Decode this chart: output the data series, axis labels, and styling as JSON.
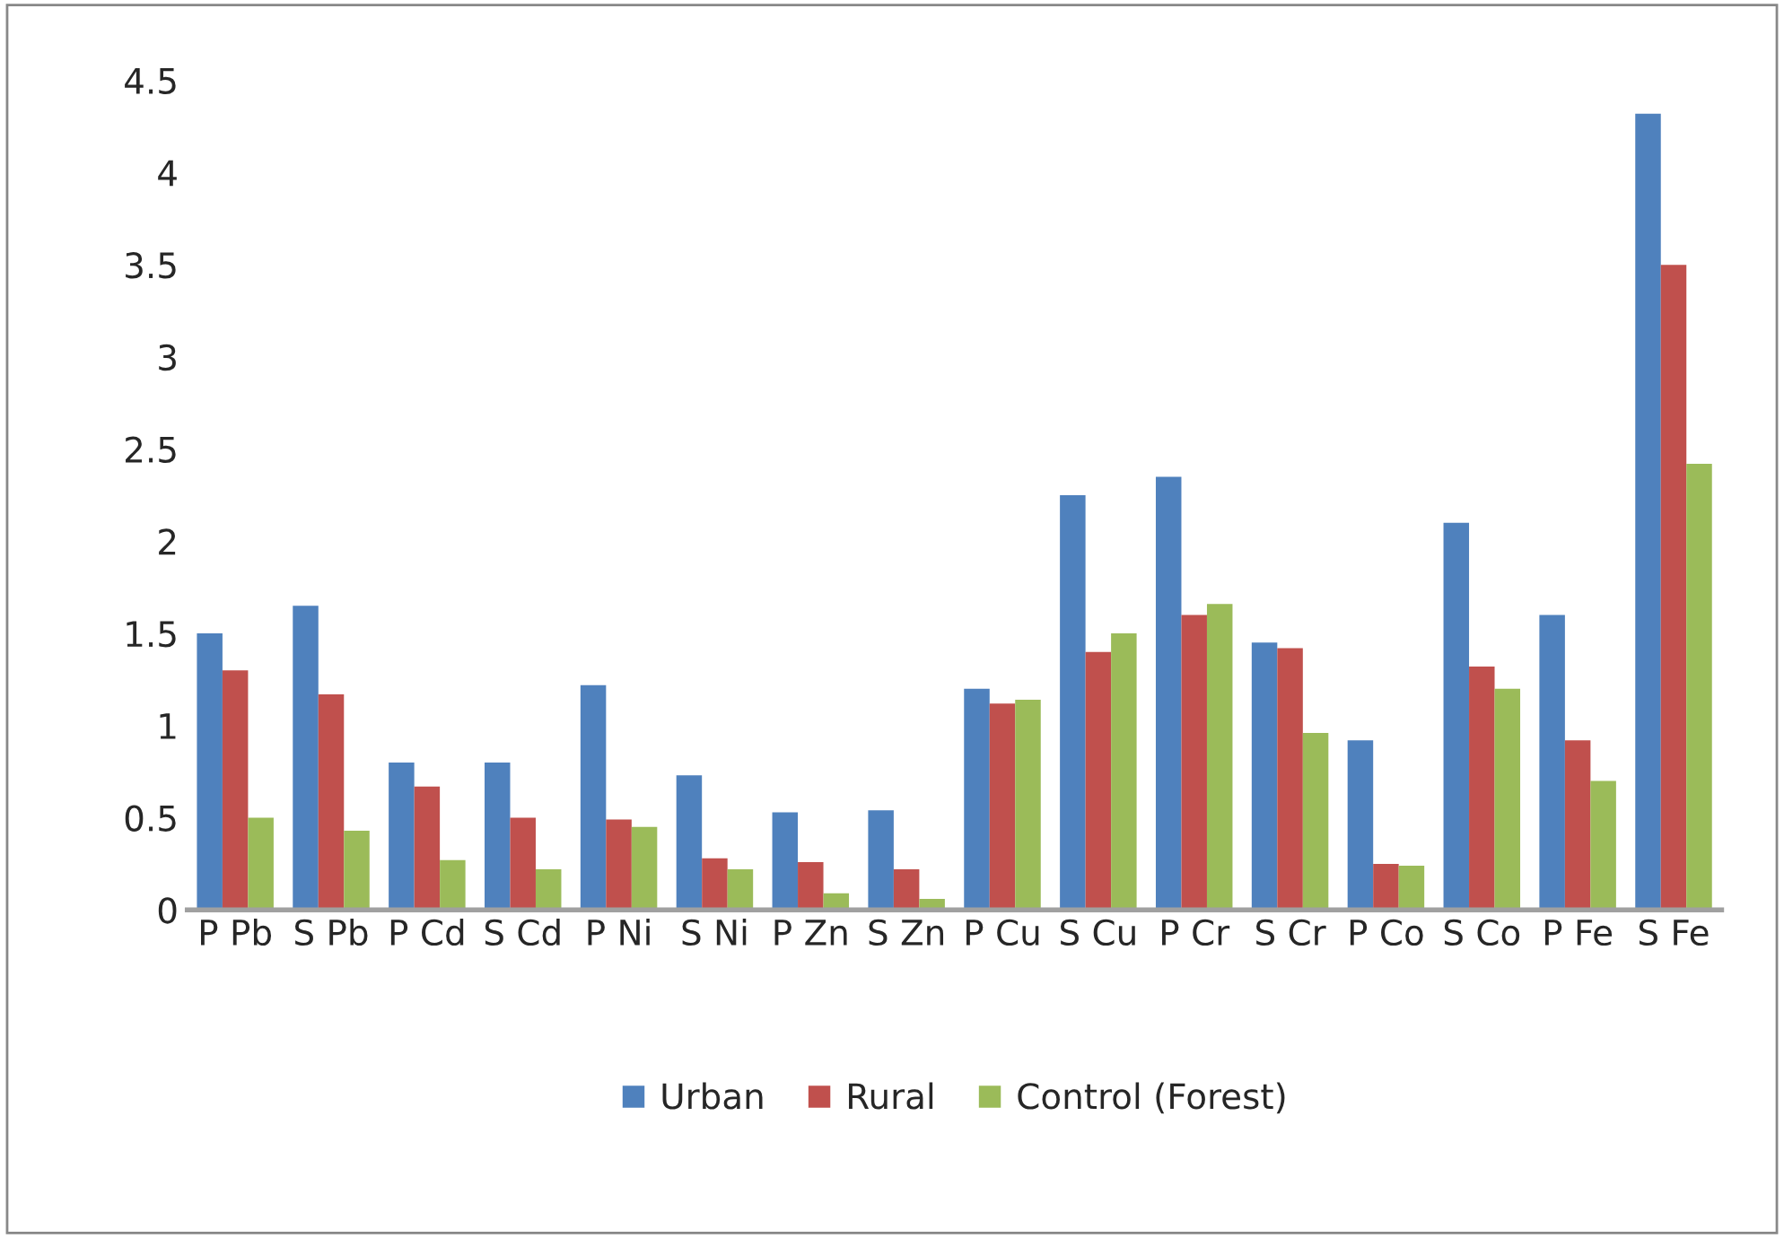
{
  "chart_data": {
    "type": "bar",
    "categories": [
      "P Pb",
      "S Pb",
      "P Cd",
      "S Cd",
      "P Ni",
      "S Ni",
      "P Zn",
      "S Zn",
      "P Cu",
      "S Cu",
      "P Cr",
      "S Cr",
      "P Co",
      "S Co",
      "P Fe",
      "S Fe"
    ],
    "series": [
      {
        "name": "Urban",
        "color": "#4f81bd",
        "values": [
          1.5,
          1.65,
          0.8,
          0.8,
          1.22,
          0.73,
          0.53,
          0.54,
          1.2,
          2.25,
          2.35,
          1.45,
          0.92,
          2.1,
          1.6,
          4.32
        ]
      },
      {
        "name": "Rural",
        "color": "#c0504d",
        "values": [
          1.3,
          1.17,
          0.67,
          0.5,
          0.49,
          0.28,
          0.26,
          0.22,
          1.12,
          1.4,
          1.6,
          1.42,
          0.25,
          1.32,
          0.92,
          3.5
        ]
      },
      {
        "name": "Control (Forest)",
        "color": "#9bbb59",
        "values": [
          0.5,
          0.43,
          0.27,
          0.22,
          0.45,
          0.22,
          0.09,
          0.06,
          1.14,
          1.5,
          1.66,
          0.96,
          0.24,
          1.2,
          0.7,
          2.42
        ]
      }
    ],
    "ylim": [
      0,
      4.5
    ],
    "yticks": [
      0,
      0.5,
      1,
      1.5,
      2,
      2.5,
      3,
      3.5,
      4,
      4.5
    ],
    "grid": false,
    "legend": "bottom"
  }
}
